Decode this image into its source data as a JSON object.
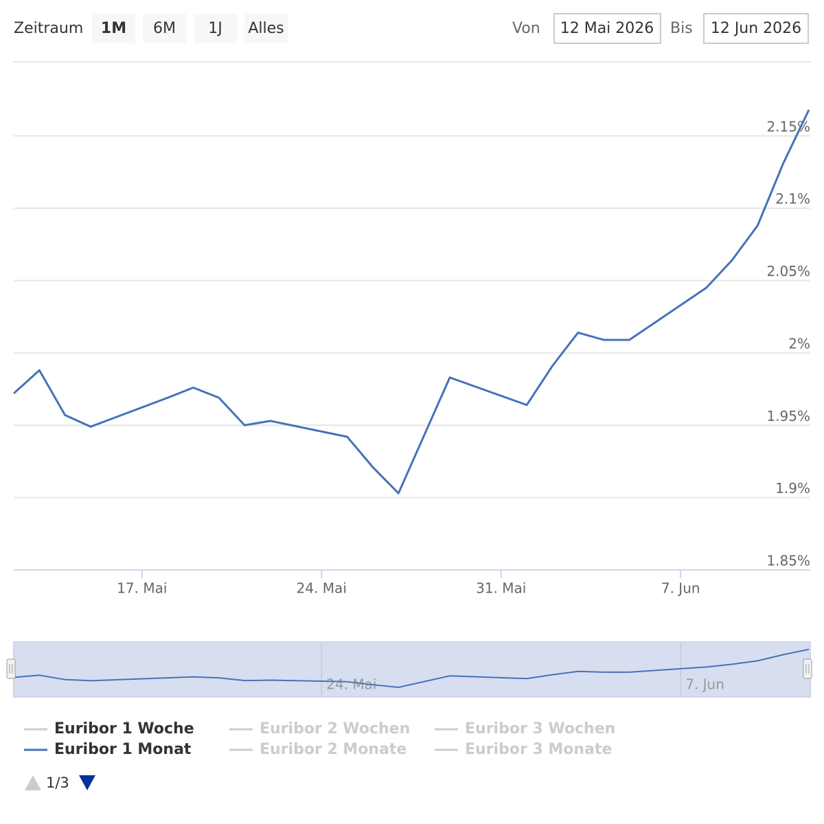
{
  "chart_data": {
    "type": "line",
    "range_selector": {
      "label": "Zeitraum",
      "buttons": [
        "1M",
        "6M",
        "1J",
        "Alles"
      ],
      "selected": 0,
      "from_label": "Von",
      "from": "12 Mai 2026",
      "to_label": "Bis",
      "to": "12 Jun 2026"
    },
    "x": [
      "2026-05-12",
      "2026-05-13",
      "2026-05-14",
      "2026-05-15",
      "2026-05-18",
      "2026-05-19",
      "2026-05-20",
      "2026-05-21",
      "2026-05-22",
      "2026-05-25",
      "2026-05-26",
      "2026-05-27",
      "2026-05-28",
      "2026-05-29",
      "2026-06-01",
      "2026-06-02",
      "2026-06-03",
      "2026-06-04",
      "2026-06-05",
      "2026-06-08",
      "2026-06-09",
      "2026-06-10",
      "2026-06-11",
      "2026-06-12"
    ],
    "series": [
      {
        "name": "Euribor 1 Monat",
        "color": "#4572b8",
        "values": [
          1.972,
          1.988,
          1.957,
          1.949,
          1.969,
          1.976,
          1.969,
          1.95,
          1.953,
          1.942,
          1.921,
          1.903,
          1.943,
          1.983,
          1.964,
          1.991,
          2.014,
          2.009,
          2.009,
          2.045,
          2.064,
          2.088,
          2.131,
          2.168
        ]
      }
    ],
    "xlim": [
      "2026-05-12",
      "2026-06-12"
    ],
    "xticks": [
      {
        "value": "2026-05-17",
        "label": "17. Mai"
      },
      {
        "value": "2026-05-24",
        "label": "24. Mai"
      },
      {
        "value": "2026-05-31",
        "label": "31. Mai"
      },
      {
        "value": "2026-06-07",
        "label": "7. Jun"
      }
    ],
    "ylim": [
      1.85,
      2.2
    ],
    "yticks": [
      {
        "value": 1.85,
        "label": "1.85%"
      },
      {
        "value": 1.9,
        "label": "1.9%"
      },
      {
        "value": 1.95,
        "label": "1.95%"
      },
      {
        "value": 2,
        "label": "2%"
      },
      {
        "value": 2.05,
        "label": "2.05%"
      },
      {
        "value": 2.1,
        "label": "2.1%"
      },
      {
        "value": 2.15,
        "label": "2.15%"
      }
    ],
    "grid": true,
    "navigator_xticks": [
      {
        "value": "2026-05-24",
        "label": "24. Mai"
      },
      {
        "value": "2026-06-07",
        "label": "7. Jun"
      }
    ],
    "legend": [
      {
        "name": "Euribor 1 Woche",
        "color": "#cccccc",
        "text_color": "#333333"
      },
      {
        "name": "Euribor 2 Wochen",
        "color": "#cccccc",
        "text_color": "#cccccc"
      },
      {
        "name": "Euribor 3 Wochen",
        "color": "#cccccc",
        "text_color": "#cccccc"
      },
      {
        "name": "Euribor 1 Monat",
        "color": "#4572b8",
        "text_color": "#333333"
      },
      {
        "name": "Euribor 2 Monate",
        "color": "#cccccc",
        "text_color": "#cccccc"
      },
      {
        "name": "Euribor 3 Monate",
        "color": "#cccccc",
        "text_color": "#cccccc"
      }
    ],
    "legend_page": "1/3"
  }
}
